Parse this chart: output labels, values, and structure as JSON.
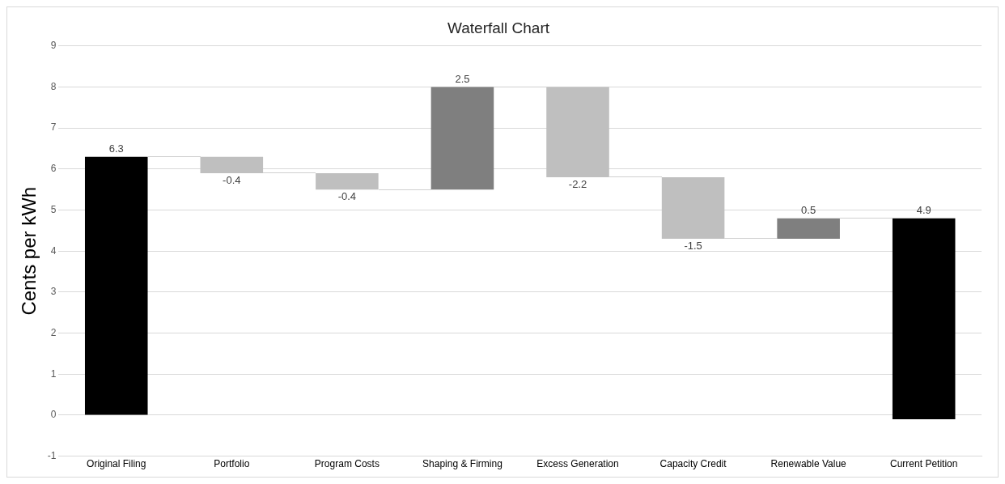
{
  "chart_data": {
    "type": "bar",
    "title": "Waterfall Chart",
    "ylabel": "Cents per kWh",
    "categories": [
      "Original Filing",
      "Portfolio",
      "Program Costs",
      "Shaping & Firming",
      "Excess Generation",
      "Capacity Credit",
      "Renewable Value",
      "Current Petition"
    ],
    "values": [
      6.3,
      -0.4,
      -0.4,
      2.5,
      -2.2,
      -1.5,
      0.5,
      4.9
    ],
    "base": [
      0,
      6.3,
      5.9,
      5.5,
      8.0,
      5.8,
      4.3,
      -0.1
    ],
    "colors": [
      "#000000",
      "#bfbfbf",
      "#bfbfbf",
      "#7f7f7f",
      "#bfbfbf",
      "#bfbfbf",
      "#7f7f7f",
      "#000000"
    ],
    "ylim": [
      -1,
      9
    ],
    "yticks": [
      -1,
      0,
      1,
      2,
      3,
      4,
      5,
      6,
      7,
      8,
      9
    ],
    "grid": "y",
    "data_labels": true,
    "legend": false
  }
}
